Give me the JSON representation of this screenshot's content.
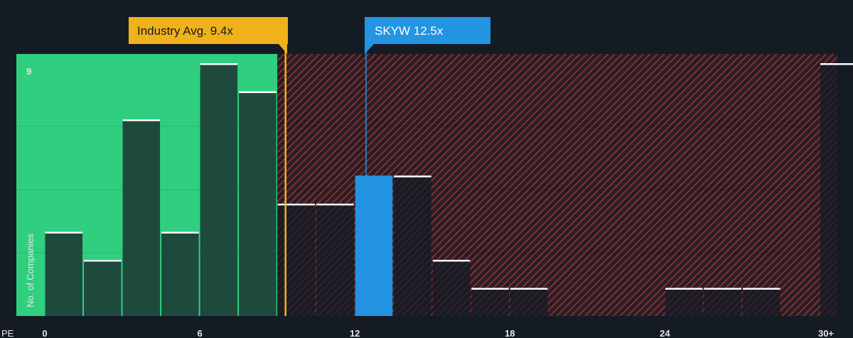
{
  "chart_data": {
    "type": "bar",
    "x_label": "PE",
    "y_label": "No. of Companies",
    "x_ticks": [
      {
        "value": 0,
        "label": "0"
      },
      {
        "value": 6,
        "label": "6"
      },
      {
        "value": 12,
        "label": "12"
      },
      {
        "value": 18,
        "label": "18"
      },
      {
        "value": 24,
        "label": "24"
      },
      {
        "value": 30,
        "label": "30+"
      }
    ],
    "y_ticks": [
      9
    ],
    "xlim": [
      0,
      31
    ],
    "ylim": [
      0,
      9
    ],
    "bin_width": 1.5,
    "bars": [
      {
        "x": 0,
        "value": 3
      },
      {
        "x": 1.5,
        "value": 2
      },
      {
        "x": 3,
        "value": 7
      },
      {
        "x": 4.5,
        "value": 3
      },
      {
        "x": 6,
        "value": 9
      },
      {
        "x": 7.5,
        "value": 8
      },
      {
        "x": 9,
        "value": 4
      },
      {
        "x": 10.5,
        "value": 4
      },
      {
        "x": 12,
        "value": 5,
        "highlight": true
      },
      {
        "x": 13.5,
        "value": 5
      },
      {
        "x": 15,
        "value": 2
      },
      {
        "x": 16.5,
        "value": 1
      },
      {
        "x": 18,
        "value": 1
      },
      {
        "x": 24,
        "value": 1
      },
      {
        "x": 25.5,
        "value": 1
      },
      {
        "x": 27,
        "value": 1
      },
      {
        "x": 30,
        "value": 9
      }
    ],
    "industry": {
      "label": "Industry Avg. 9.4x",
      "value": 9.4,
      "color": "#f0b21b"
    },
    "company": {
      "label": "SKYW 12.5x",
      "value": 12.5,
      "color": "#2394e1"
    },
    "colors": {
      "background": "#141b24",
      "fair_zone": "#2fcf7f",
      "bar": "#1e4a3d",
      "highlight_bar": "#2394e1",
      "hatch": "#c03a40",
      "bar_top": "#ffffff",
      "grid": "#2b3440"
    }
  }
}
